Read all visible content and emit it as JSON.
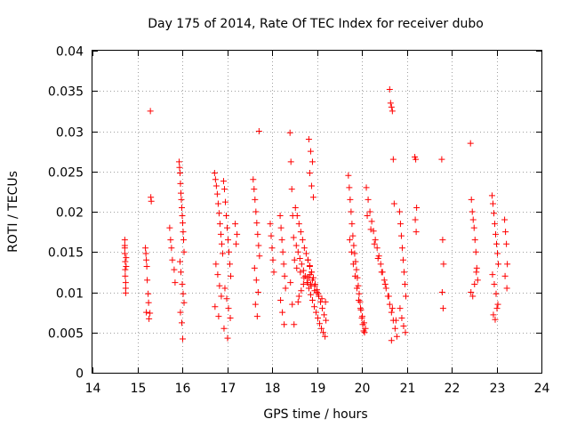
{
  "chart_data": {
    "type": "scatter",
    "title": "Day 175 of 2014, Rate Of TEC Index for receiver dubo",
    "xlabel": "GPS time / hours",
    "ylabel": "ROTI / TECUs",
    "xlim": [
      14,
      24
    ],
    "ylim": [
      0,
      0.04
    ],
    "xticks": [
      "14",
      "15",
      "16",
      "17",
      "18",
      "19",
      "20",
      "21",
      "22",
      "23",
      "24"
    ],
    "yticks": [
      "0",
      "0.005",
      "0.01",
      "0.015",
      "0.02",
      "0.025",
      "0.03",
      "0.035",
      "0.04"
    ],
    "grid": true,
    "marker": "+",
    "color": "#ff0000",
    "series": [
      {
        "name": "ROTI",
        "x": [
          14.72,
          14.72,
          14.72,
          14.73,
          14.73,
          14.73,
          14.74,
          14.74,
          14.74,
          14.75,
          14.75,
          14.72,
          15.18,
          15.19,
          15.2,
          15.21,
          15.22,
          15.24,
          15.25,
          15.28,
          15.29,
          15.3,
          15.31,
          15.2,
          15.26,
          15.72,
          15.74,
          15.76,
          15.78,
          15.82,
          15.84,
          15.93,
          15.94,
          15.95,
          15.96,
          15.97,
          15.98,
          15.99,
          16.0,
          16.01,
          16.02,
          16.03,
          16.04,
          15.95,
          15.97,
          16.0,
          16.02,
          16.04,
          15.96,
          15.99,
          16.01,
          16.72,
          16.74,
          16.76,
          16.78,
          16.8,
          16.82,
          16.84,
          16.86,
          16.88,
          16.9,
          16.75,
          16.79,
          16.83,
          16.87,
          16.73,
          16.81,
          16.92,
          16.94,
          16.96,
          16.98,
          17.0,
          17.02,
          17.04,
          17.06,
          17.08,
          16.95,
          16.99,
          17.03,
          17.07,
          16.93,
          17.01,
          17.18,
          17.22,
          17.2,
          17.58,
          17.6,
          17.62,
          17.64,
          17.66,
          17.68,
          17.7,
          17.72,
          17.61,
          17.65,
          17.69,
          17.63,
          17.67,
          17.71,
          17.96,
          17.98,
          18.0,
          18.02,
          18.04,
          18.18,
          18.2,
          18.22,
          18.24,
          18.26,
          18.28,
          18.3,
          18.19,
          18.23,
          18.27,
          18.4,
          18.42,
          18.44,
          18.46,
          18.48,
          18.5,
          18.41,
          18.45,
          18.49,
          18.52,
          18.56,
          18.6,
          18.64,
          18.68,
          18.72,
          18.76,
          18.8,
          18.84,
          18.88,
          18.92,
          18.96,
          19.0,
          19.04,
          19.08,
          19.12,
          19.16,
          19.2,
          18.54,
          18.58,
          18.62,
          18.66,
          18.7,
          18.74,
          18.78,
          18.82,
          18.86,
          18.9,
          18.94,
          18.98,
          19.02,
          19.06,
          19.1,
          19.14,
          19.18,
          18.55,
          18.63,
          18.71,
          18.79,
          18.87,
          18.95,
          19.03,
          19.11,
          19.19,
          18.82,
          18.86,
          18.9,
          18.84,
          18.88,
          18.92,
          18.58,
          18.6,
          18.65,
          18.7,
          18.78,
          18.85,
          18.9,
          18.95,
          19.0,
          18.8,
          18.84,
          18.88,
          18.82,
          18.86,
          19.7,
          19.72,
          19.74,
          19.76,
          19.78,
          19.8,
          19.82,
          19.84,
          19.86,
          19.88,
          19.9,
          19.92,
          19.94,
          19.96,
          19.98,
          20.0,
          20.02,
          20.04,
          20.06,
          20.08,
          19.73,
          19.77,
          19.81,
          19.85,
          19.89,
          19.93,
          19.97,
          20.01,
          20.05,
          20.1,
          20.14,
          20.18,
          20.22,
          20.26,
          20.3,
          20.34,
          20.38,
          20.42,
          20.46,
          20.5,
          20.54,
          20.58,
          20.62,
          20.66,
          20.7,
          20.74,
          20.78,
          20.12,
          20.2,
          20.28,
          20.36,
          20.44,
          20.52,
          20.6,
          20.68,
          20.76,
          20.62,
          20.64,
          20.66,
          20.68,
          20.7,
          20.72,
          20.66,
          20.84,
          20.86,
          20.88,
          20.9,
          20.92,
          20.94,
          20.96,
          20.98,
          20.85,
          20.89,
          20.93,
          20.97,
          21.18,
          21.2,
          21.22,
          21.19,
          21.21,
          21.78,
          21.8,
          21.82,
          21.79,
          21.81,
          22.42,
          22.44,
          22.46,
          22.48,
          22.5,
          22.52,
          22.54,
          22.56,
          22.58,
          22.43,
          22.47,
          22.51,
          22.55,
          22.9,
          22.92,
          22.94,
          22.96,
          22.98,
          23.0,
          23.02,
          23.04,
          22.91,
          22.95,
          22.99,
          23.03,
          22.93,
          22.97,
          23.01,
          23.18,
          23.2,
          23.22,
          23.24,
          23.19,
          23.23
        ],
        "y": [
          0.0165,
          0.0158,
          0.0148,
          0.0138,
          0.0128,
          0.012,
          0.0112,
          0.0105,
          0.0099,
          0.0132,
          0.0143,
          0.0155,
          0.0155,
          0.0148,
          0.014,
          0.0132,
          0.0115,
          0.0098,
          0.0087,
          0.0074,
          0.0325,
          0.0218,
          0.0213,
          0.0075,
          0.0067,
          0.018,
          0.0165,
          0.0155,
          0.014,
          0.0128,
          0.0112,
          0.0262,
          0.0255,
          0.0248,
          0.0235,
          0.0223,
          0.0215,
          0.0205,
          0.0195,
          0.0186,
          0.0175,
          0.0165,
          0.015,
          0.0138,
          0.0125,
          0.011,
          0.0098,
          0.0087,
          0.0075,
          0.0062,
          0.0042,
          0.0248,
          0.024,
          0.0232,
          0.0222,
          0.021,
          0.0198,
          0.0185,
          0.0172,
          0.016,
          0.0148,
          0.0135,
          0.0122,
          0.0108,
          0.0095,
          0.0082,
          0.007,
          0.0238,
          0.0228,
          0.0212,
          0.0195,
          0.018,
          0.0165,
          0.015,
          0.0135,
          0.012,
          0.0105,
          0.0092,
          0.008,
          0.0068,
          0.0055,
          0.0043,
          0.0185,
          0.0172,
          0.016,
          0.024,
          0.0228,
          0.0215,
          0.02,
          0.0186,
          0.0172,
          0.0158,
          0.0145,
          0.013,
          0.0115,
          0.01,
          0.0085,
          0.007,
          0.03,
          0.0185,
          0.017,
          0.0155,
          0.014,
          0.0125,
          0.0195,
          0.018,
          0.0165,
          0.015,
          0.0135,
          0.012,
          0.0105,
          0.009,
          0.0075,
          0.006,
          0.0298,
          0.0262,
          0.0228,
          0.0195,
          0.0168,
          0.014,
          0.0112,
          0.0085,
          0.006,
          0.0205,
          0.0195,
          0.0185,
          0.0175,
          0.0165,
          0.0155,
          0.0148,
          0.014,
          0.0133,
          0.0125,
          0.0118,
          0.011,
          0.0103,
          0.0095,
          0.0088,
          0.008,
          0.0072,
          0.0065,
          0.0158,
          0.015,
          0.0142,
          0.0135,
          0.0127,
          0.012,
          0.0112,
          0.0105,
          0.0097,
          0.009,
          0.0082,
          0.0075,
          0.0068,
          0.0061,
          0.0055,
          0.005,
          0.0045,
          0.013,
          0.0125,
          0.0118,
          0.0112,
          0.0108,
          0.0102,
          0.0098,
          0.0092,
          0.0088,
          0.029,
          0.0275,
          0.0262,
          0.0248,
          0.0232,
          0.0218,
          0.0088,
          0.0095,
          0.0102,
          0.011,
          0.0118,
          0.0122,
          0.0115,
          0.0108,
          0.01,
          0.014,
          0.0132,
          0.0125,
          0.0118,
          0.011,
          0.0245,
          0.023,
          0.0215,
          0.02,
          0.0185,
          0.017,
          0.0158,
          0.0148,
          0.0138,
          0.0128,
          0.0118,
          0.0108,
          0.0098,
          0.0088,
          0.0078,
          0.0068,
          0.006,
          0.0052,
          0.005,
          0.0055,
          0.0165,
          0.015,
          0.0135,
          0.012,
          0.0105,
          0.009,
          0.008,
          0.007,
          0.0062,
          0.023,
          0.0215,
          0.02,
          0.0188,
          0.0176,
          0.0165,
          0.0155,
          0.0145,
          0.0135,
          0.0125,
          0.0115,
          0.0105,
          0.0095,
          0.0085,
          0.0075,
          0.0065,
          0.0055,
          0.0045,
          0.0195,
          0.0178,
          0.016,
          0.0142,
          0.0125,
          0.011,
          0.0095,
          0.008,
          0.0065,
          0.0352,
          0.0335,
          0.033,
          0.0325,
          0.0265,
          0.021,
          0.004,
          0.02,
          0.0185,
          0.017,
          0.0155,
          0.014,
          0.0125,
          0.011,
          0.0095,
          0.008,
          0.0068,
          0.0058,
          0.005,
          0.0268,
          0.0265,
          0.0205,
          0.019,
          0.0175,
          0.0265,
          0.0165,
          0.0135,
          0.01,
          0.008,
          0.0285,
          0.0215,
          0.02,
          0.019,
          0.018,
          0.0165,
          0.015,
          0.013,
          0.0115,
          0.01,
          0.0095,
          0.011,
          0.0125,
          0.022,
          0.021,
          0.0198,
          0.0185,
          0.0172,
          0.016,
          0.0148,
          0.0135,
          0.0122,
          0.011,
          0.0098,
          0.0085,
          0.0072,
          0.0066,
          0.008,
          0.019,
          0.0175,
          0.016,
          0.0135,
          0.012,
          0.0105
        ]
      }
    ]
  }
}
